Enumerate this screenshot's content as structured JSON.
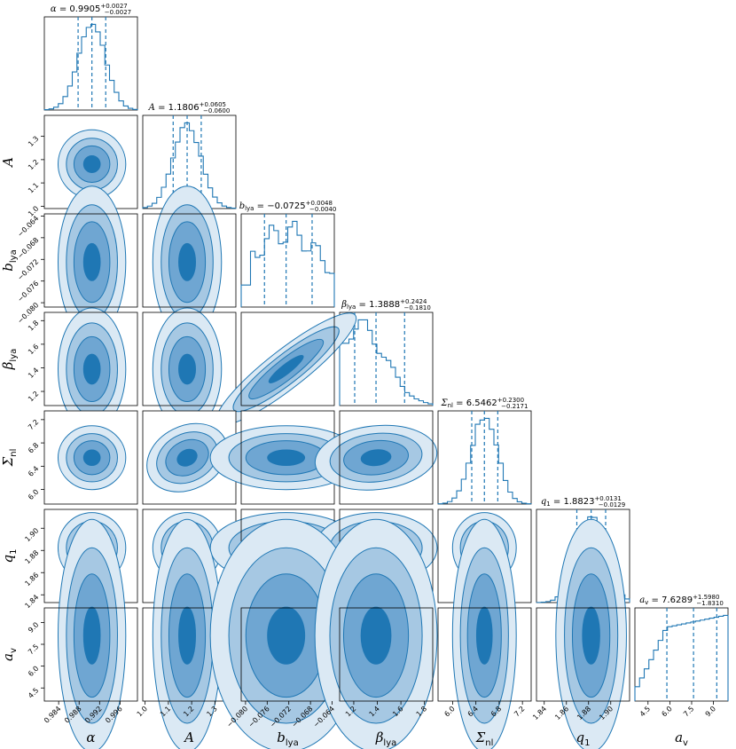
{
  "chart_data": {
    "type": "corner",
    "params": [
      {
        "label": "α",
        "sub": "",
        "median": 0.9905,
        "plus": 0.0027,
        "minus": 0.0027,
        "range": [
          0.9812,
          0.9994
        ],
        "ticks": [
          0.984,
          0.988,
          0.992,
          0.996
        ],
        "tick_labels": [
          "0.984",
          "0.988",
          "0.992",
          "0.996"
        ],
        "mode": 0.9897,
        "title_text": "0.9905",
        "plus_text": "+0.0027",
        "minus_text": "−0.0027",
        "title_var": "α",
        "title_sub": ""
      },
      {
        "label": "A",
        "sub": "",
        "median": 1.1806,
        "plus": 0.0605,
        "minus": 0.06,
        "range": [
          0.99,
          1.39
        ],
        "ticks": [
          1.0,
          1.1,
          1.2,
          1.3
        ],
        "tick_labels": [
          "1.0",
          "1.1",
          "1.2",
          "1.3"
        ],
        "mode": 1.18,
        "title_text": "1.1806",
        "plus_text": "+0.0605",
        "minus_text": "−0.0600",
        "title_var": "A",
        "title_sub": ""
      },
      {
        "label": "b",
        "sub": "lya",
        "median": -0.0725,
        "plus": 0.0048,
        "minus": 0.004,
        "range": [
          -0.0808,
          -0.0636
        ],
        "ticks": [
          -0.08,
          -0.076,
          -0.072,
          -0.068,
          -0.064
        ],
        "tick_labels": [
          "−0.080",
          "−0.076",
          "−0.072",
          "−0.068",
          "−0.064"
        ],
        "mode": -0.0733,
        "title_text": "−0.0725",
        "plus_text": "+0.0048",
        "minus_text": "−0.0040",
        "title_var": "b",
        "title_sub": "lya"
      },
      {
        "label": "β",
        "sub": "lya",
        "median": 1.3888,
        "plus": 0.2424,
        "minus": 0.181,
        "range": [
          1.08,
          1.87
        ],
        "ticks": [
          1.2,
          1.4,
          1.6,
          1.8
        ],
        "tick_labels": [
          "1.2",
          "1.4",
          "1.6",
          "1.8"
        ],
        "mode": 1.25,
        "title_text": "1.3888",
        "plus_text": "+0.2424",
        "minus_text": "−0.1810",
        "title_var": "β",
        "title_sub": "lya"
      },
      {
        "label": "Σ",
        "sub": "nl",
        "median": 6.5462,
        "plus": 0.23,
        "minus": 0.2171,
        "range": [
          5.75,
          7.35
        ],
        "ticks": [
          6.0,
          6.4,
          6.8,
          7.2
        ],
        "tick_labels": [
          "6.0",
          "6.4",
          "6.8",
          "7.2"
        ],
        "mode": 6.58,
        "title_text": "6.5462",
        "plus_text": "+0.2300",
        "minus_text": "−0.2171",
        "title_var": "Σ",
        "title_sub": "nl"
      },
      {
        "label": "q",
        "sub": "1",
        "median": 1.8823,
        "plus": 0.0131,
        "minus": 0.0129,
        "range": [
          1.833,
          1.917
        ],
        "ticks": [
          1.84,
          1.86,
          1.88,
          1.9
        ],
        "tick_labels": [
          "1.84",
          "1.86",
          "1.88",
          "1.90"
        ],
        "mode": 1.881,
        "title_text": "1.8823",
        "plus_text": "+0.0131",
        "minus_text": "−0.0129",
        "title_var": "q",
        "title_sub": "1"
      },
      {
        "label": "a",
        "sub": "v",
        "median": 7.6289,
        "plus": 1.598,
        "minus": 1.831,
        "range": [
          3.6,
          10.0
        ],
        "ticks": [
          4.5,
          6.0,
          7.5,
          9.0
        ],
        "tick_labels": [
          "4.5",
          "6.0",
          "7.5",
          "9.0"
        ],
        "mode": 9.3,
        "title_text": "7.6289",
        "plus_text": "+1.5980",
        "minus_text": "−1.8310",
        "title_var": "a",
        "title_sub": "v"
      }
    ],
    "correlations": {
      "2-3": 0.97,
      "1-4": 0.55,
      "3-4": 0.2
    },
    "color": "#1f77b4",
    "contour_levels": 4,
    "title_format": "{var} = {median}^{+plus}_{-minus}"
  }
}
